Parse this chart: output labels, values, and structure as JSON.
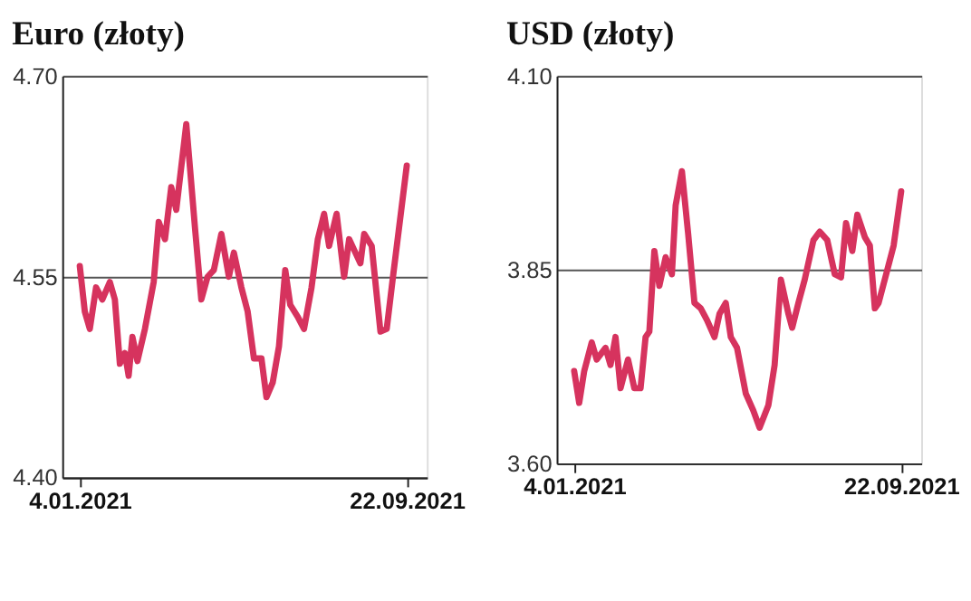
{
  "chart_data": [
    {
      "type": "line",
      "title": "Euro (złoty)",
      "grid": "y",
      "line_style": "solid",
      "marker": "none",
      "xlim": [
        "2020-12-21",
        "2021-10-08"
      ],
      "xticks": [
        {
          "value": "2021-01-04",
          "label": "4.01.2021"
        },
        {
          "value": "2021-09-22",
          "label": "22.09.2021"
        }
      ],
      "ylim": [
        4.4,
        4.7
      ],
      "yticks": [
        {
          "value": 4.4,
          "label": "4.40"
        },
        {
          "value": 4.55,
          "label": "4.55"
        },
        {
          "value": 4.7,
          "label": "4.70"
        }
      ],
      "x": [
        "2021-01-04",
        "2021-01-08",
        "2021-01-12",
        "2021-01-17",
        "2021-01-22",
        "2021-01-28",
        "2021-02-01",
        "2021-02-05",
        "2021-02-09",
        "2021-02-12",
        "2021-02-15",
        "2021-02-19",
        "2021-02-25",
        "2021-03-04",
        "2021-03-08",
        "2021-03-13",
        "2021-03-18",
        "2021-03-22",
        "2021-03-30",
        "2021-04-02",
        "2021-04-06",
        "2021-04-11",
        "2021-04-16",
        "2021-04-21",
        "2021-04-27",
        "2021-05-03",
        "2021-05-07",
        "2021-05-13",
        "2021-05-18",
        "2021-05-23",
        "2021-05-29",
        "2021-06-02",
        "2021-06-07",
        "2021-06-12",
        "2021-06-17",
        "2021-06-21",
        "2021-06-27",
        "2021-07-02",
        "2021-07-08",
        "2021-07-13",
        "2021-07-18",
        "2021-07-22",
        "2021-07-28",
        "2021-08-03",
        "2021-08-07",
        "2021-08-12",
        "2021-08-16",
        "2021-08-19",
        "2021-08-25",
        "2021-09-01",
        "2021-09-06",
        "2021-09-11",
        "2021-09-22"
      ],
      "series": [
        {
          "color": "#d6335e",
          "values": [
            4.558,
            4.524,
            4.511,
            4.542,
            4.533,
            4.546,
            4.533,
            4.485,
            4.493,
            4.476,
            4.505,
            4.487,
            4.511,
            4.546,
            4.591,
            4.578,
            4.617,
            4.6,
            4.664,
            4.631,
            4.586,
            4.533,
            4.55,
            4.555,
            4.582,
            4.55,
            4.568,
            4.542,
            4.524,
            4.489,
            4.489,
            4.46,
            4.471,
            4.498,
            4.555,
            4.529,
            4.52,
            4.511,
            4.542,
            4.578,
            4.597,
            4.573,
            4.597,
            4.55,
            4.578,
            4.568,
            4.56,
            4.582,
            4.573,
            4.509,
            4.511,
            4.55,
            4.633
          ]
        }
      ]
    },
    {
      "type": "line",
      "title": "USD (złoty)",
      "grid": "y",
      "line_style": "solid",
      "marker": "none",
      "xlim": [
        "2020-12-21",
        "2021-10-08"
      ],
      "xticks": [
        {
          "value": "2021-01-04",
          "label": "4.01.2021"
        },
        {
          "value": "2021-09-22",
          "label": "22.09.2021"
        }
      ],
      "ylim": [
        3.6,
        4.1
      ],
      "yticks": [
        {
          "value": 3.6,
          "label": "3.60"
        },
        {
          "value": 3.85,
          "label": "3.85"
        },
        {
          "value": 4.1,
          "label": "4.10"
        }
      ],
      "x": [
        "2021-01-04",
        "2021-01-08",
        "2021-01-12",
        "2021-01-18",
        "2021-01-22",
        "2021-01-29",
        "2021-02-02",
        "2021-02-06",
        "2021-02-10",
        "2021-02-16",
        "2021-02-21",
        "2021-02-26",
        "2021-03-02",
        "2021-03-05",
        "2021-03-09",
        "2021-03-13",
        "2021-03-18",
        "2021-03-23",
        "2021-03-26",
        "2021-03-31",
        "2021-04-05",
        "2021-04-10",
        "2021-04-15",
        "2021-04-20",
        "2021-04-26",
        "2021-04-30",
        "2021-05-05",
        "2021-05-09",
        "2021-05-14",
        "2021-05-21",
        "2021-05-27",
        "2021-06-01",
        "2021-06-08",
        "2021-06-13",
        "2021-06-18",
        "2021-06-24",
        "2021-06-27",
        "2021-07-02",
        "2021-07-07",
        "2021-07-14",
        "2021-07-19",
        "2021-07-25",
        "2021-07-31",
        "2021-08-05",
        "2021-08-09",
        "2021-08-14",
        "2021-08-18",
        "2021-08-24",
        "2021-08-28",
        "2021-09-01",
        "2021-09-04",
        "2021-09-10",
        "2021-09-16",
        "2021-09-22"
      ],
      "series": [
        {
          "color": "#d6335e",
          "values": [
            3.719,
            3.678,
            3.719,
            3.756,
            3.734,
            3.749,
            3.727,
            3.763,
            3.697,
            3.734,
            3.697,
            3.697,
            3.763,
            3.77,
            3.874,
            3.829,
            3.866,
            3.844,
            3.933,
            3.977,
            3.896,
            3.807,
            3.8,
            3.785,
            3.763,
            3.793,
            3.807,
            3.763,
            3.749,
            3.69,
            3.668,
            3.646,
            3.675,
            3.727,
            3.837,
            3.793,
            3.775,
            3.807,
            3.837,
            3.888,
            3.899,
            3.888,
            3.844,
            3.84,
            3.91,
            3.874,
            3.921,
            3.892,
            3.881,
            3.8,
            3.807,
            3.844,
            3.881,
            3.951
          ]
        }
      ]
    }
  ]
}
